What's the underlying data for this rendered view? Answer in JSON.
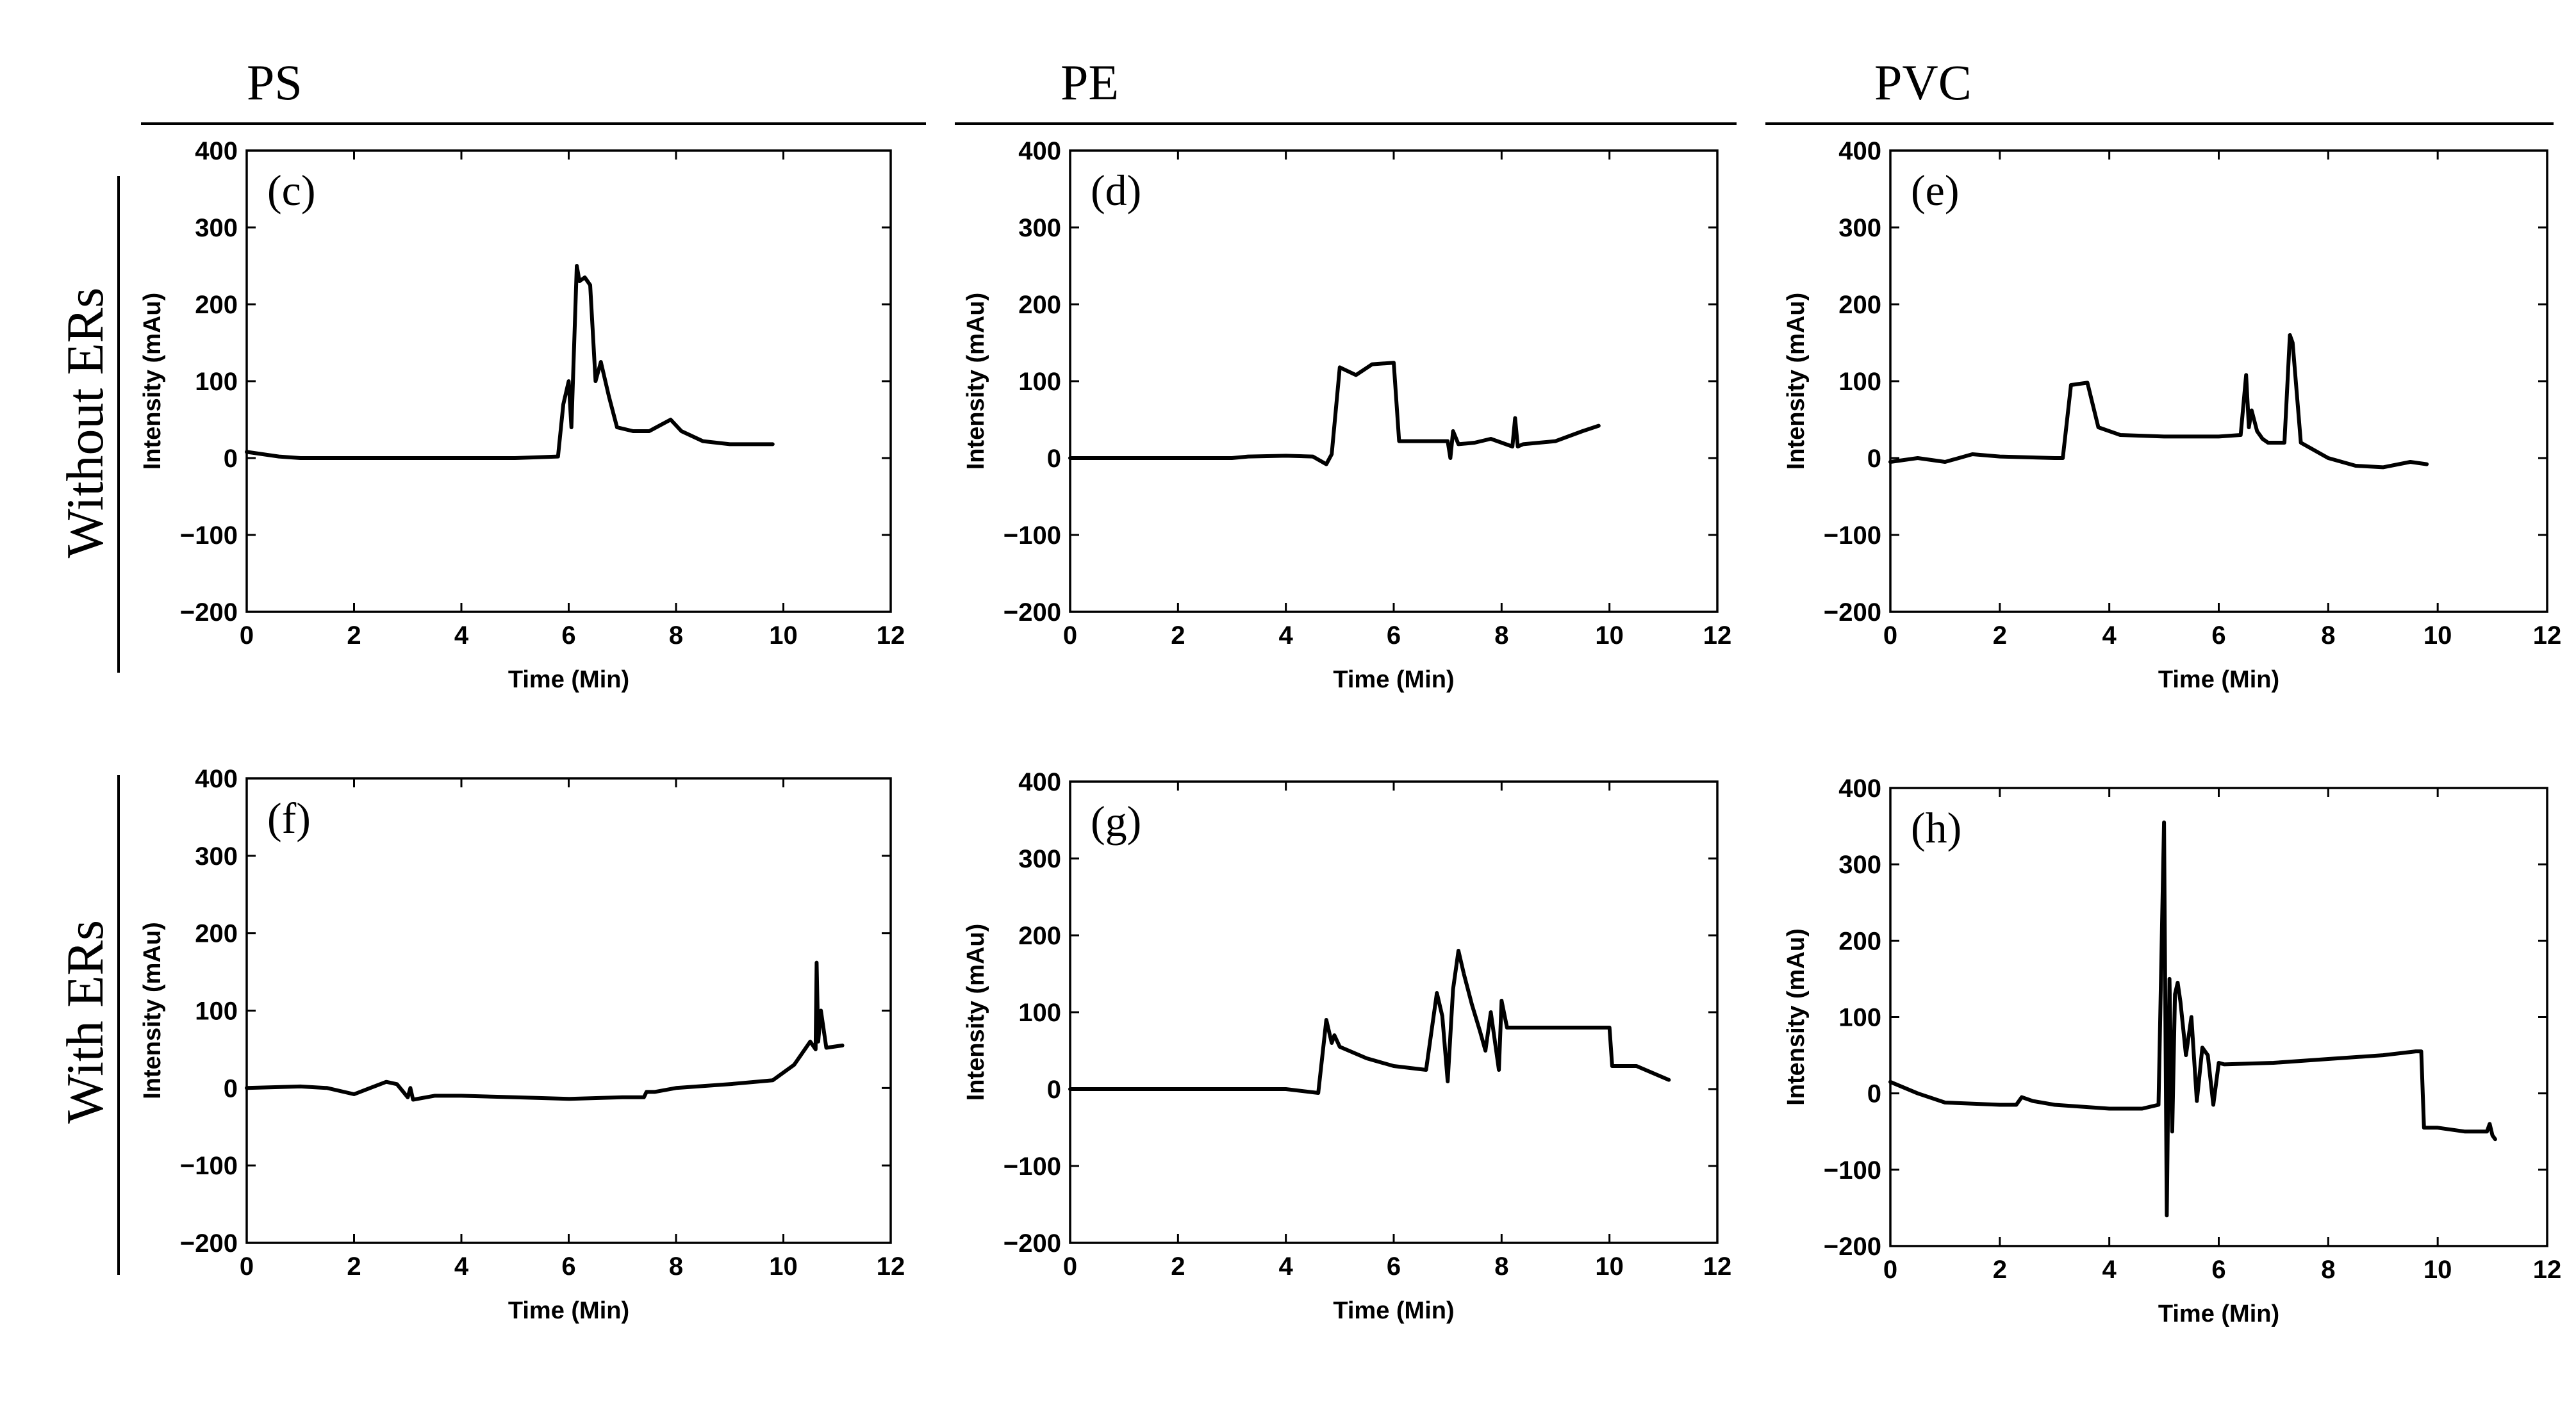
{
  "column_headers": [
    "PS",
    "PE",
    "PVC"
  ],
  "row_labels": [
    "Without ERs",
    "With ERs"
  ],
  "chart_data": [
    {
      "panel": "(c)",
      "column": "PS",
      "row": "Without ERs",
      "type": "line",
      "xlabel": "Time (Min)",
      "ylabel": "Intensity (mAu)",
      "xlim": [
        0,
        12
      ],
      "ylim": [
        -200,
        400
      ],
      "xticks": [
        "0",
        "2",
        "4",
        "6",
        "8",
        "10",
        "12"
      ],
      "yticks": [
        "400",
        "300",
        "200",
        "100",
        "0",
        "−100",
        "−200"
      ],
      "x": [
        0,
        0.3,
        0.6,
        1,
        2,
        3,
        4,
        5,
        5.8,
        5.9,
        6.0,
        6.05,
        6.15,
        6.2,
        6.3,
        6.4,
        6.5,
        6.6,
        6.75,
        6.9,
        7.2,
        7.5,
        7.9,
        8.1,
        8.5,
        9,
        9.5,
        9.8
      ],
      "y": [
        8,
        5,
        2,
        0,
        0,
        0,
        0,
        0,
        2,
        70,
        100,
        40,
        250,
        230,
        235,
        225,
        100,
        125,
        80,
        40,
        35,
        35,
        50,
        35,
        22,
        18,
        18,
        18
      ]
    },
    {
      "panel": "(d)",
      "column": "PE",
      "row": "Without ERs",
      "type": "line",
      "xlabel": "Time (Min)",
      "ylabel": "Intensity (mAu)",
      "xlim": [
        0,
        12
      ],
      "ylim": [
        -200,
        400
      ],
      "xticks": [
        "0",
        "2",
        "4",
        "6",
        "8",
        "10",
        "12"
      ],
      "yticks": [
        "400",
        "300",
        "200",
        "100",
        "0",
        "−100",
        "−200"
      ],
      "x": [
        0,
        1,
        2,
        3,
        3.3,
        4,
        4.5,
        4.75,
        4.85,
        5.0,
        5.3,
        5.6,
        6.0,
        6.1,
        7,
        7.05,
        7.1,
        7.2,
        7.5,
        7.8,
        8.2,
        8.25,
        8.3,
        8.4,
        9,
        9.5,
        9.8
      ],
      "y": [
        0,
        0,
        0,
        0,
        2,
        3,
        2,
        -8,
        5,
        118,
        108,
        122,
        124,
        22,
        22,
        0,
        35,
        18,
        20,
        25,
        15,
        52,
        15,
        18,
        22,
        35,
        42
      ]
    },
    {
      "panel": "(e)",
      "column": "PVC",
      "row": "Without ERs",
      "type": "line",
      "xlabel": "Time (Min)",
      "ylabel": "Intensity (mAu)",
      "xlim": [
        0,
        12
      ],
      "ylim": [
        -200,
        400
      ],
      "xticks": [
        "0",
        "2",
        "4",
        "6",
        "8",
        "10",
        "12"
      ],
      "yticks": [
        "400",
        "300",
        "200",
        "100",
        "0",
        "−100",
        "−200"
      ],
      "x": [
        0,
        0.5,
        1,
        1.5,
        2,
        3,
        3.15,
        3.3,
        3.6,
        3.8,
        4.2,
        5,
        6,
        6.4,
        6.5,
        6.55,
        6.6,
        6.7,
        6.8,
        6.9,
        7.2,
        7.3,
        7.35,
        7.5,
        8,
        8.5,
        9,
        9.5,
        9.8
      ],
      "y": [
        -5,
        0,
        -5,
        5,
        2,
        0,
        0,
        95,
        98,
        40,
        30,
        28,
        28,
        30,
        108,
        40,
        62,
        35,
        25,
        20,
        20,
        160,
        150,
        20,
        0,
        -10,
        -12,
        -5,
        -8
      ]
    },
    {
      "panel": "(f)",
      "column": "PS",
      "row": "With ERs",
      "type": "line",
      "xlabel": "Time (Min)",
      "ylabel": "Intensity (mAu)",
      "xlim": [
        0,
        12
      ],
      "ylim": [
        -200,
        400
      ],
      "xticks": [
        "0",
        "2",
        "4",
        "6",
        "8",
        "10",
        "12"
      ],
      "yticks": [
        "400",
        "300",
        "200",
        "100",
        "0",
        "−100",
        "−200"
      ],
      "x": [
        0,
        1,
        1.5,
        2,
        2.3,
        2.6,
        2.8,
        3,
        3.05,
        3.1,
        3.5,
        4,
        5,
        6,
        7,
        7.4,
        7.45,
        7.6,
        8,
        9,
        9.8,
        10.2,
        10.5,
        10.6,
        10.62,
        10.65,
        10.7,
        10.8,
        11.1
      ],
      "y": [
        0,
        2,
        0,
        -8,
        0,
        8,
        5,
        -12,
        0,
        -15,
        -10,
        -10,
        -12,
        -14,
        -12,
        -12,
        -5,
        -5,
        0,
        5,
        10,
        30,
        60,
        50,
        162,
        60,
        100,
        52,
        55
      ]
    },
    {
      "panel": "(g)",
      "column": "PE",
      "row": "With ERs",
      "type": "line",
      "xlabel": "Time (Min)",
      "ylabel": "Intensity (mAu)",
      "xlim": [
        0,
        12
      ],
      "ylim": [
        -200,
        400
      ],
      "xticks": [
        "0",
        "2",
        "4",
        "6",
        "8",
        "10",
        "12"
      ],
      "yticks": [
        "400",
        "300",
        "200",
        "100",
        "0",
        "−100",
        "−200"
      ],
      "x": [
        0,
        1,
        2,
        3,
        4,
        4.6,
        4.75,
        4.85,
        4.9,
        5,
        5.5,
        6,
        6.6,
        6.8,
        6.9,
        7.0,
        7.1,
        7.2,
        7.3,
        7.45,
        7.6,
        7.7,
        7.8,
        7.95,
        8.0,
        8.1,
        8.5,
        9,
        9.5,
        10,
        10.05,
        10.5,
        11,
        11.1
      ],
      "y": [
        0,
        0,
        0,
        0,
        0,
        -5,
        90,
        60,
        70,
        55,
        40,
        30,
        25,
        125,
        95,
        10,
        130,
        180,
        150,
        110,
        75,
        50,
        100,
        25,
        115,
        80,
        80,
        80,
        80,
        80,
        30,
        30,
        15,
        12
      ]
    },
    {
      "panel": "(h)",
      "column": "PVC",
      "row": "With ERs",
      "type": "line",
      "xlabel": "Time (Min)",
      "ylabel": "Intensity (mAu)",
      "xlim": [
        0,
        12
      ],
      "ylim": [
        -200,
        400
      ],
      "xticks": [
        "0",
        "2",
        "4",
        "6",
        "8",
        "10",
        "12"
      ],
      "yticks": [
        "400",
        "300",
        "200",
        "100",
        "0",
        "−100",
        "−200"
      ],
      "x": [
        0,
        0.5,
        1,
        2,
        2.3,
        2.4,
        2.6,
        3,
        4,
        4.6,
        4.9,
        5.0,
        5.05,
        5.1,
        5.15,
        5.2,
        5.25,
        5.3,
        5.4,
        5.5,
        5.6,
        5.7,
        5.8,
        5.9,
        6.0,
        6.1,
        7,
        8,
        9,
        9.6,
        9.7,
        9.75,
        10,
        10.5,
        10.9,
        10.95,
        11.0,
        11.05
      ],
      "y": [
        15,
        0,
        -12,
        -15,
        -15,
        -5,
        -10,
        -15,
        -20,
        -20,
        -15,
        355,
        -160,
        150,
        -50,
        130,
        145,
        120,
        50,
        100,
        -10,
        60,
        50,
        -15,
        40,
        38,
        40,
        45,
        50,
        55,
        55,
        -45,
        -45,
        -50,
        -50,
        -40,
        -55,
        -60
      ]
    }
  ]
}
